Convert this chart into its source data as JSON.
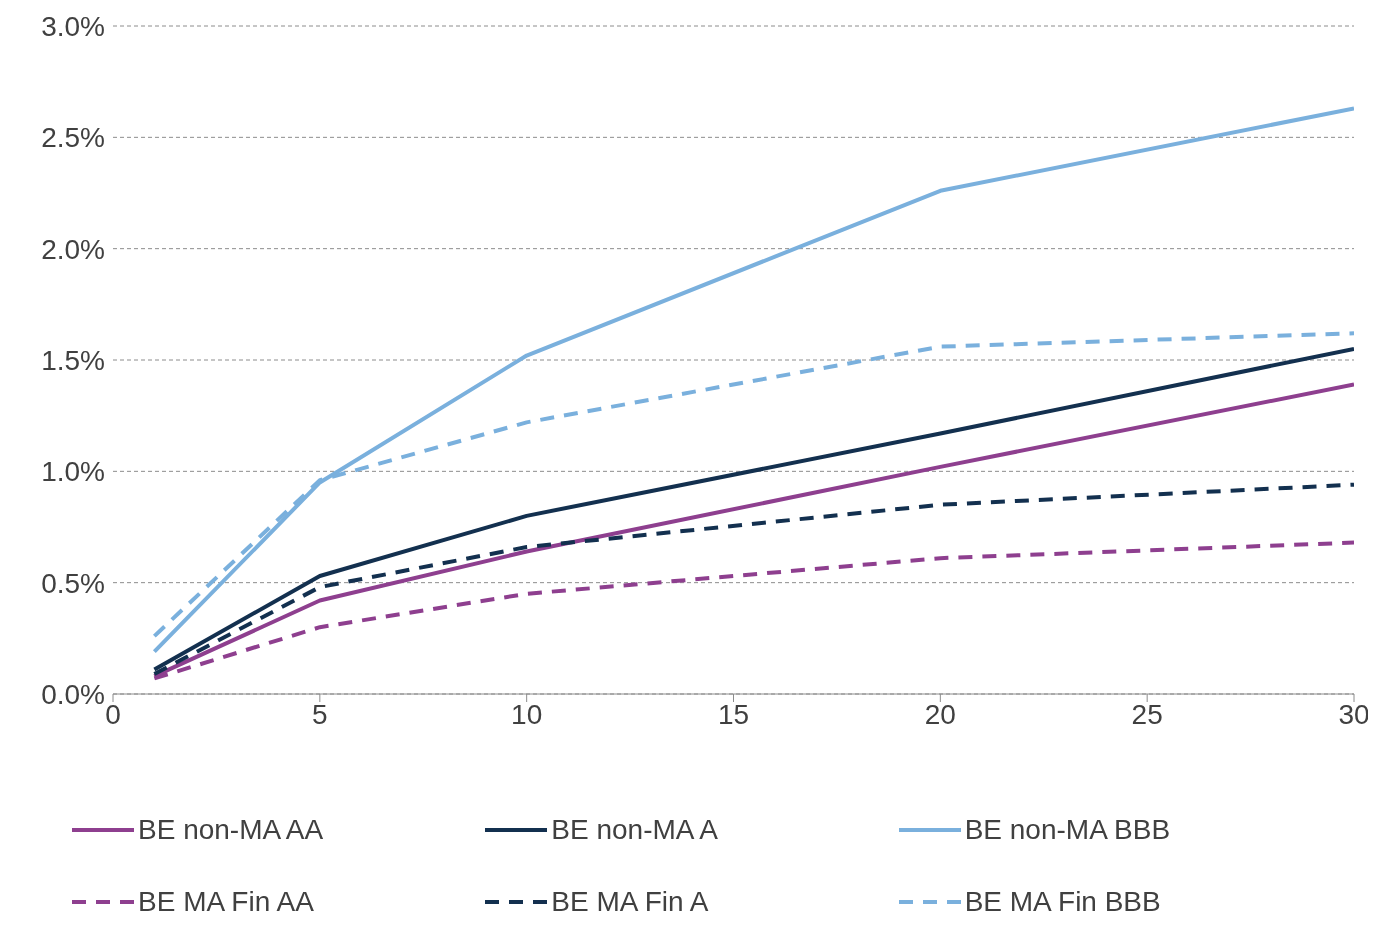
{
  "chart_data": {
    "type": "line",
    "x": [
      1,
      5,
      10,
      20,
      30
    ],
    "xlim": [
      0,
      30
    ],
    "xticks": [
      0,
      5,
      10,
      15,
      20,
      25,
      30
    ],
    "ylim": [
      0,
      3
    ],
    "yticks": [
      {
        "value": 0,
        "label": "0.0%"
      },
      {
        "value": 0.5,
        "label": "0.5%"
      },
      {
        "value": 1,
        "label": "1.0%"
      },
      {
        "value": 1.5,
        "label": "1.5%"
      },
      {
        "value": 2,
        "label": "2.0%"
      },
      {
        "value": 2.5,
        "label": "2.5%"
      },
      {
        "value": 3,
        "label": "3.0%"
      }
    ],
    "grid": "y",
    "legend": "bottom",
    "marker": "none",
    "series": [
      {
        "name": "BE non-MA AA",
        "color": "#8e3f8f",
        "line_style": "solid",
        "values": [
          0.08,
          0.42,
          0.64,
          1.02,
          1.39
        ]
      },
      {
        "name": "BE non-MA A",
        "color": "#13304f",
        "line_style": "solid",
        "values": [
          0.11,
          0.53,
          0.8,
          1.17,
          1.55
        ]
      },
      {
        "name": "BE non-MA BBB",
        "color": "#7ab0dd",
        "line_style": "solid",
        "values": [
          0.19,
          0.95,
          1.52,
          2.26,
          2.63
        ]
      },
      {
        "name": "BE MA Fin AA",
        "color": "#8e3f8f",
        "line_style": "dashed",
        "values": [
          0.07,
          0.3,
          0.45,
          0.61,
          0.68
        ]
      },
      {
        "name": "BE MA Fin A",
        "color": "#13304f",
        "line_style": "dashed",
        "values": [
          0.09,
          0.48,
          0.66,
          0.85,
          0.94
        ]
      },
      {
        "name": "BE MA Fin BBB",
        "color": "#7ab0dd",
        "line_style": "dashed",
        "values": [
          0.26,
          0.96,
          1.22,
          1.56,
          1.62
        ]
      }
    ]
  }
}
